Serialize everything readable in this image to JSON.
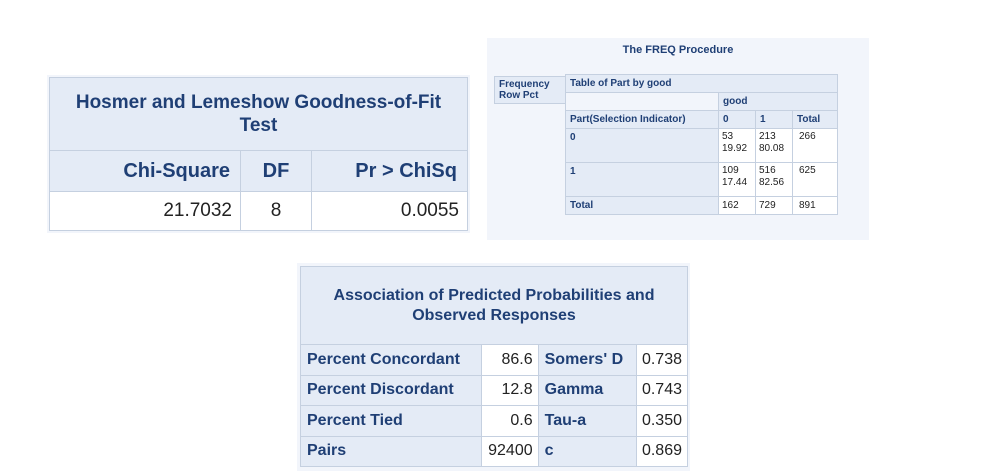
{
  "hosmer": {
    "title": "Hosmer and Lemeshow Goodness-of-Fit Test",
    "headers": [
      "Chi-Square",
      "DF",
      "Pr > ChiSq"
    ],
    "row": [
      "21.7032",
      "8",
      "0.0055"
    ]
  },
  "freq": {
    "title": "The FREQ Procedure",
    "legend": [
      "Frequency",
      "Row Pct"
    ],
    "table_title": "Table of Part by good",
    "col_var": "good",
    "row_var": "Part(Selection Indicator)",
    "col_headers": [
      "0",
      "1",
      "Total"
    ],
    "rows": [
      {
        "label": "0",
        "c0_freq": "53",
        "c0_pct": "19.92",
        "c1_freq": "213",
        "c1_pct": "80.08",
        "total": "266"
      },
      {
        "label": "1",
        "c0_freq": "109",
        "c0_pct": "17.44",
        "c1_freq": "516",
        "c1_pct": "82.56",
        "total": "625"
      }
    ],
    "total_row": {
      "label": "Total",
      "c0": "162",
      "c1": "729",
      "total": "891"
    }
  },
  "assoc": {
    "title": "Association of Predicted Probabilities and Observed Responses",
    "rows": [
      {
        "label": "Percent Concordant",
        "value": "86.6",
        "stat": "Somers' D",
        "stat_value": "0.738"
      },
      {
        "label": "Percent Discordant",
        "value": "12.8",
        "stat": "Gamma",
        "stat_value": "0.743"
      },
      {
        "label": "Percent Tied",
        "value": "0.6",
        "stat": "Tau-a",
        "stat_value": "0.350"
      },
      {
        "label": "Pairs",
        "value": "92400",
        "stat": "c",
        "stat_value": "0.869"
      }
    ]
  }
}
